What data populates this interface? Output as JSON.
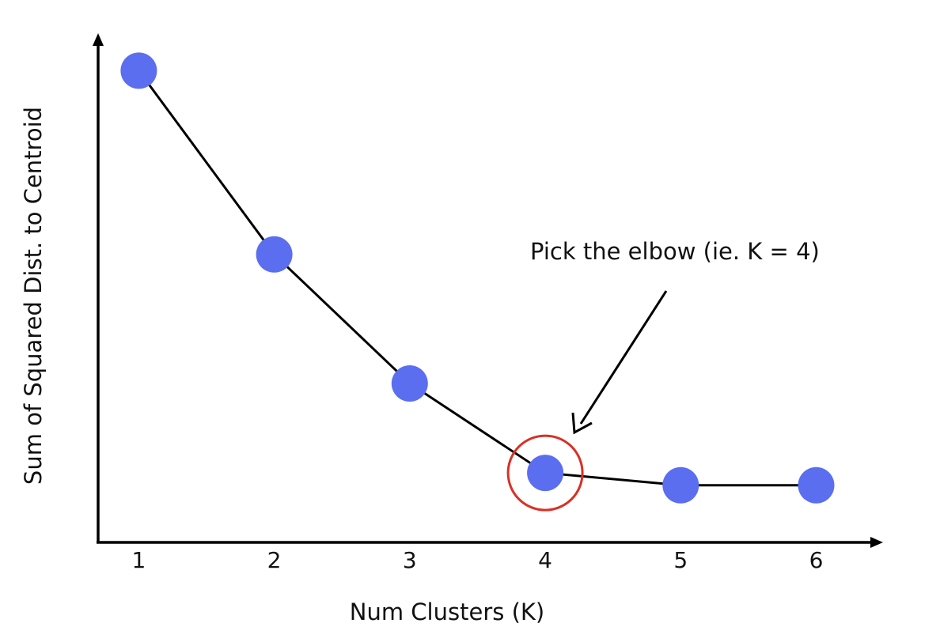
{
  "chart_data": {
    "type": "line",
    "title": "",
    "xlabel": "Num Clusters (K)",
    "ylabel": "Sum of Squared Dist. to Centroid",
    "categories": [
      "1",
      "2",
      "3",
      "4",
      "5",
      "6"
    ],
    "x": [
      1,
      2,
      3,
      4,
      5,
      6
    ],
    "values": [
      9.5,
      5.8,
      3.2,
      1.4,
      1.15,
      1.15
    ],
    "ylim": [
      0,
      10
    ],
    "xlim": [
      0.7,
      6.4
    ],
    "grid": false,
    "legend": "none",
    "annotations": [
      {
        "text": "Pick the elbow (ie. K = 4)",
        "target_x": 4,
        "highlight": "circle"
      }
    ]
  },
  "colors": {
    "point": "#5b6ef0",
    "line": "#000000",
    "highlight": "#d93025",
    "axis": "#000000",
    "text": "#111111"
  }
}
